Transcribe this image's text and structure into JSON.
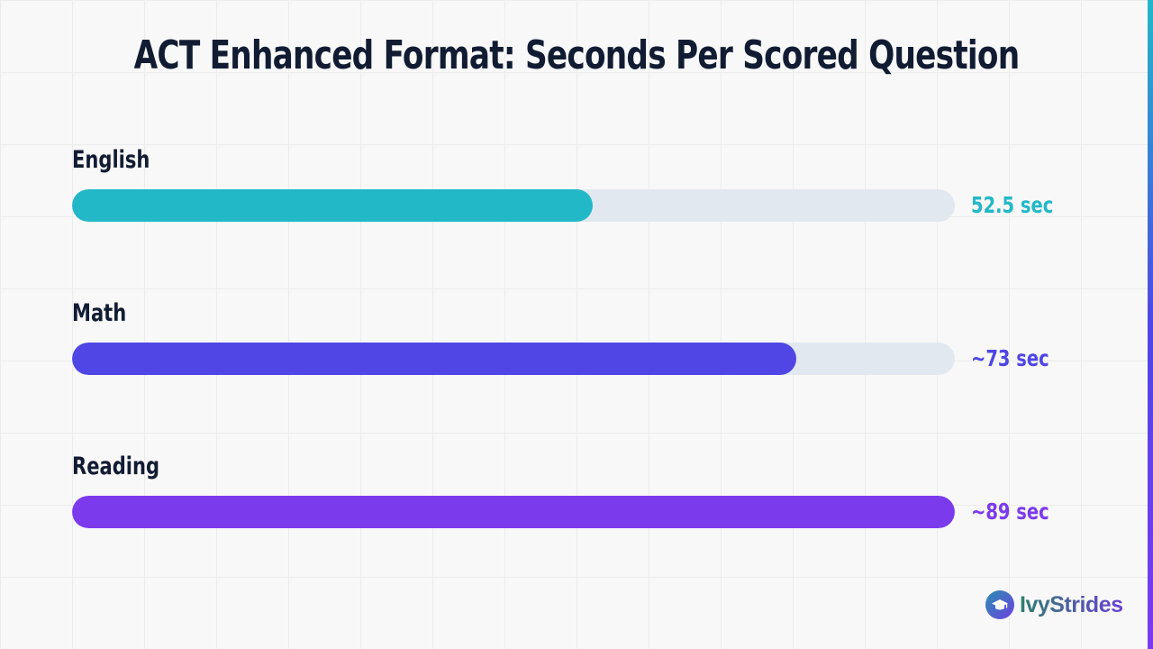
{
  "chart_data": {
    "type": "bar",
    "orientation": "horizontal",
    "title": "ACT Enhanced Format: Seconds Per Scored Question",
    "categories": [
      "English",
      "Math",
      "Reading"
    ],
    "values": [
      52.5,
      73,
      89
    ],
    "value_labels": [
      "52.5 sec",
      "~73 sec",
      "~89 sec"
    ],
    "colors": [
      "#22b8c8",
      "#4f46e5",
      "#7c3aed"
    ],
    "xlim": [
      0,
      89
    ],
    "grid": false,
    "xlabel": "",
    "ylabel": ""
  },
  "brand": {
    "name": "IvyStrides",
    "icon": "graduation-cap-icon"
  },
  "colors": {
    "title_text": "#111c33",
    "track": "#e2e8f0",
    "background": "#f8f8f8"
  }
}
